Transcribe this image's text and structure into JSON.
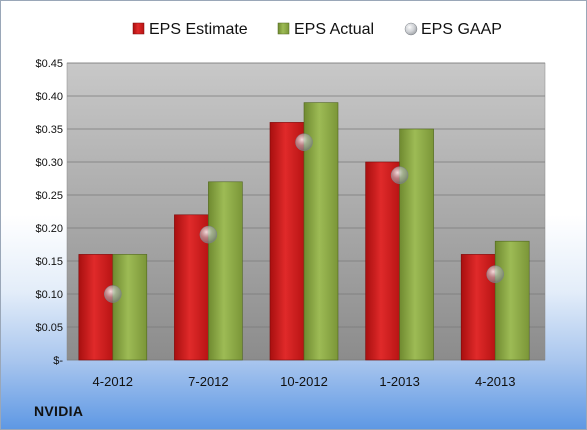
{
  "company_label": "NVIDIA",
  "colors": {
    "estimate": "#d21c1c",
    "actual": "#8dab47",
    "gaap": "#b8bcc2",
    "plot_top": "#c8c8c8",
    "plot_bottom": "#8c8c8c"
  },
  "chart_data": {
    "type": "bar",
    "categories": [
      "4-2012",
      "7-2012",
      "10-2012",
      "1-2013",
      "4-2013"
    ],
    "series": [
      {
        "name": "EPS Estimate",
        "type": "bar",
        "values": [
          0.16,
          0.22,
          0.36,
          0.3,
          0.16
        ]
      },
      {
        "name": "EPS Actual",
        "type": "bar",
        "values": [
          0.16,
          0.27,
          0.39,
          0.35,
          0.18
        ]
      },
      {
        "name": "EPS GAAP",
        "type": "scatter",
        "values": [
          0.1,
          0.19,
          0.33,
          0.28,
          0.13
        ]
      }
    ],
    "ylim": [
      0,
      0.45
    ],
    "yticks": [
      0,
      0.05,
      0.1,
      0.15,
      0.2,
      0.25,
      0.3,
      0.35,
      0.4,
      0.45
    ],
    "ytick_labels": [
      "$-",
      "$0.05",
      "$0.10",
      "$0.15",
      "$0.20",
      "$0.25",
      "$0.30",
      "$0.35",
      "$0.40",
      "$0.45"
    ],
    "grid": true,
    "legend_position": "top"
  }
}
